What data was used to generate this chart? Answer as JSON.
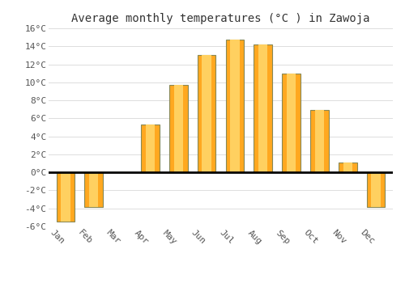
{
  "months": [
    "Jan",
    "Feb",
    "Mar",
    "Apr",
    "May",
    "Jun",
    "Jul",
    "Aug",
    "Sep",
    "Oct",
    "Nov",
    "Dec"
  ],
  "values": [
    -5.5,
    -3.8,
    0.0,
    5.3,
    9.7,
    13.0,
    14.7,
    14.2,
    11.0,
    6.9,
    1.1,
    -3.8
  ],
  "bar_color": "#FFA820",
  "bar_highlight": "#FFD060",
  "bar_edge_color": "#888855",
  "title": "Average monthly temperatures (°C ) in Zawoja",
  "ylim": [
    -6,
    16
  ],
  "yticks": [
    -6,
    -4,
    -2,
    0,
    2,
    4,
    6,
    8,
    10,
    12,
    14,
    16
  ],
  "ytick_labels": [
    "-6°C",
    "-4°C",
    "-2°C",
    "0°C",
    "2°C",
    "4°C",
    "6°C",
    "8°C",
    "10°C",
    "12°C",
    "14°C",
    "16°C"
  ],
  "background_color": "#ffffff",
  "grid_color": "#dddddd",
  "title_fontsize": 10,
  "tick_fontsize": 8,
  "bar_width": 0.65
}
